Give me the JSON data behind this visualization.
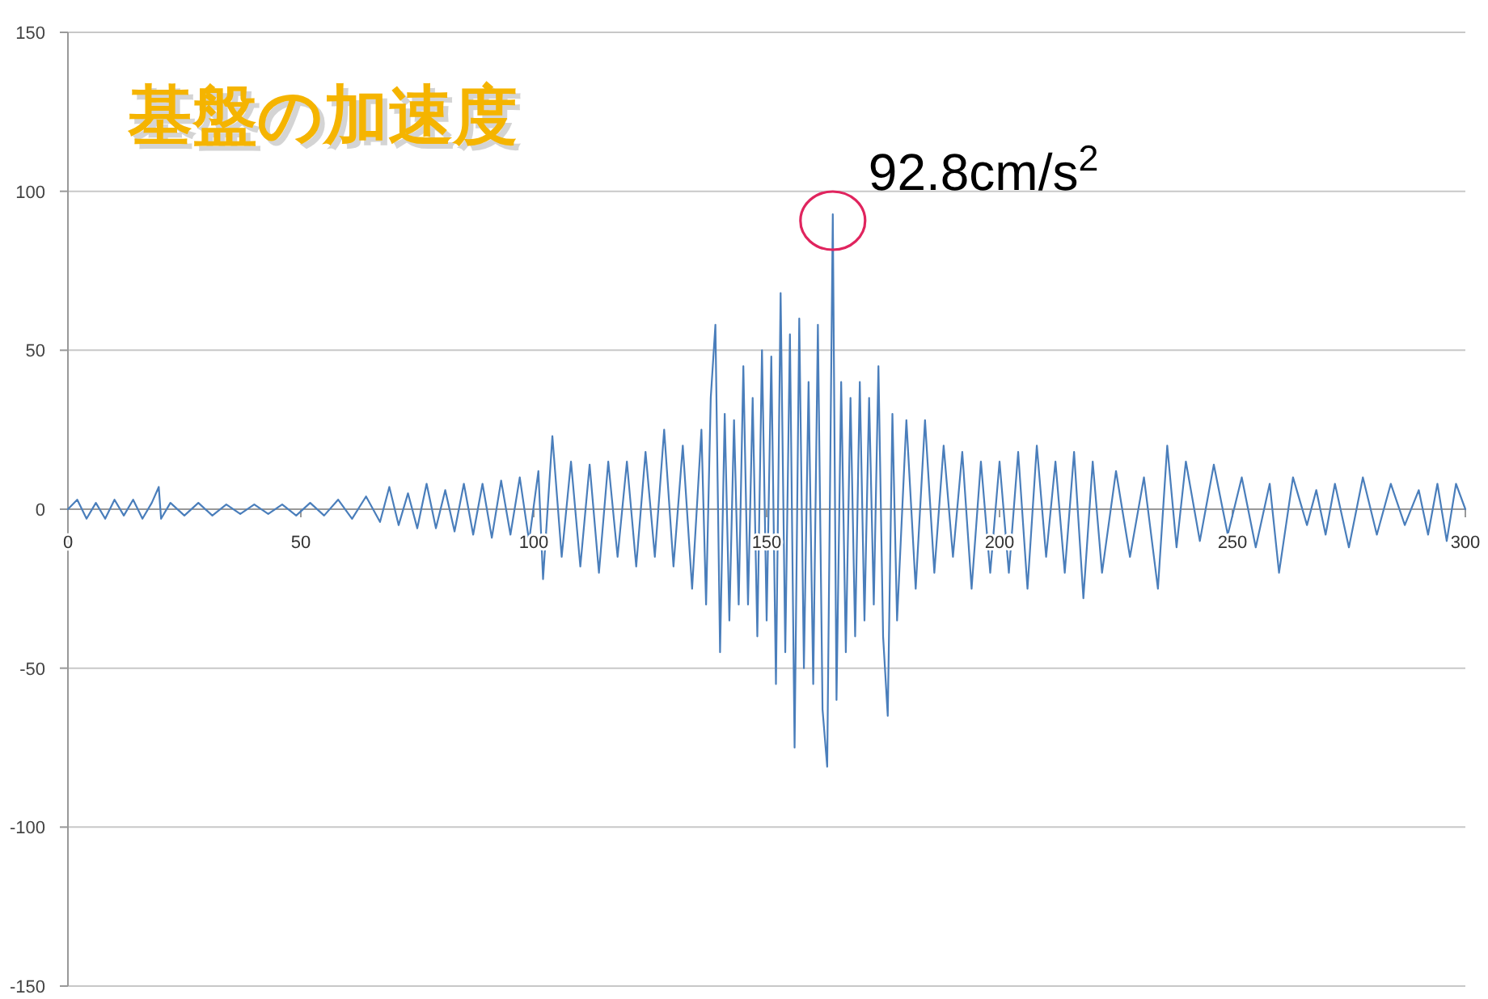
{
  "chart_data": {
    "type": "line",
    "title": "基盤の加速度",
    "x": [
      0,
      2,
      4,
      6,
      8,
      10,
      12,
      14,
      16,
      18,
      19.5,
      20,
      22,
      25,
      28,
      31,
      34,
      37,
      40,
      43,
      46,
      49,
      52,
      55,
      58,
      61,
      64,
      67,
      69,
      71,
      73,
      75,
      77,
      79,
      81,
      83,
      85,
      87,
      89,
      91,
      93,
      95,
      97,
      99,
      101,
      102,
      104,
      106,
      108,
      110,
      112,
      114,
      116,
      118,
      120,
      122,
      124,
      126,
      128,
      130,
      132,
      134,
      136,
      137,
      138,
      139,
      140,
      141,
      142,
      143,
      144,
      145,
      146,
      147,
      148,
      149,
      150,
      151,
      152,
      153,
      154,
      155,
      156,
      157,
      158,
      159,
      160,
      161,
      162,
      163,
      164.2,
      165,
      166,
      167,
      168,
      169,
      170,
      171,
      172,
      173,
      174,
      175,
      176,
      177,
      178,
      180,
      182,
      184,
      186,
      188,
      190,
      192,
      194,
      196,
      198,
      200,
      202,
      204,
      206,
      208,
      210,
      212,
      214,
      216,
      218,
      220,
      222,
      225,
      228,
      231,
      234,
      236,
      238,
      240,
      243,
      246,
      249,
      252,
      255,
      258,
      260,
      263,
      266,
      268,
      270,
      272,
      275,
      278,
      281,
      284,
      287,
      290,
      292,
      294,
      296,
      298,
      300
    ],
    "series": [
      {
        "color": "#4a7ebb",
        "values": [
          0,
          3,
          -3,
          2,
          -3,
          3,
          -2,
          3,
          -3,
          2,
          7,
          -3,
          2,
          -2,
          2,
          -2,
          1.5,
          -1.5,
          1.5,
          -1.5,
          1.5,
          -2,
          2,
          -2,
          3,
          -3,
          4,
          -4,
          7,
          -5,
          5,
          -6,
          8,
          -6,
          6,
          -7,
          8,
          -8,
          8,
          -9,
          9,
          -8,
          10,
          -10,
          12,
          -22,
          23,
          -15,
          15,
          -18,
          14,
          -20,
          15,
          -15,
          15,
          -18,
          18,
          -15,
          25,
          -18,
          20,
          -25,
          25,
          -30,
          35,
          58,
          -45,
          30,
          -35,
          28,
          -30,
          45,
          -30,
          35,
          -40,
          50,
          -35,
          48,
          -55,
          68,
          -45,
          55,
          -75,
          60,
          -50,
          40,
          -55,
          58,
          -63,
          -81,
          92.8,
          -60,
          40,
          -45,
          35,
          -40,
          40,
          -35,
          35,
          -30,
          45,
          -40,
          -65,
          30,
          -35,
          28,
          -25,
          28,
          -20,
          20,
          -15,
          18,
          -25,
          15,
          -20,
          15,
          -20,
          18,
          -25,
          20,
          -15,
          15,
          -20,
          18,
          -28,
          15,
          -20,
          12,
          -15,
          10,
          -25,
          20,
          -12,
          15,
          -10,
          14,
          -8,
          10,
          -12,
          8,
          -20,
          10,
          -5,
          6,
          -8,
          8,
          -12,
          10,
          -8,
          8,
          -5,
          6,
          -8,
          8,
          -10,
          8,
          0
        ]
      }
    ],
    "xlim": [
      0,
      300
    ],
    "xticks": [
      0,
      50,
      100,
      150,
      200,
      250,
      300
    ],
    "ylim": [
      -150,
      150
    ],
    "yticks": [
      -150,
      -100,
      -50,
      0,
      50,
      100,
      150
    ],
    "grid": "y",
    "marker": "none",
    "line_style": "solid",
    "annotations": [
      {
        "text": "92.8cm/s$^{2}$",
        "x": 164.2,
        "y": 92.8
      }
    ]
  }
}
